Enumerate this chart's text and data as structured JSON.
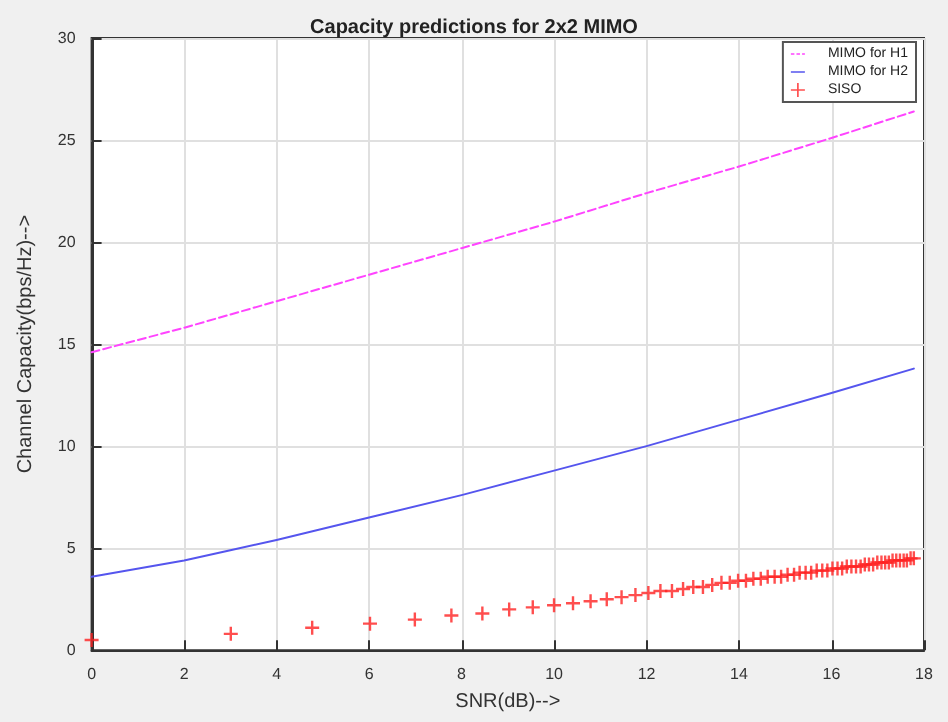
{
  "chart_data": {
    "type": "line",
    "title": "Capacity predictions for 2x2 MIMO",
    "xlabel": "SNR(dB)-->",
    "ylabel": "Channel Capacity(bps/Hz)-->",
    "xlim": [
      0,
      18
    ],
    "xticks": [
      0,
      2,
      4,
      6,
      8,
      10,
      12,
      14,
      16,
      18
    ],
    "ylim": [
      0,
      30
    ],
    "yticks": [
      0,
      5,
      10,
      15,
      20,
      25,
      30
    ],
    "grid": true,
    "legend": "top right",
    "series": [
      {
        "name": "MIMO for H1",
        "color": "#ff44ff",
        "line_style": "dashed",
        "marker": "none",
        "x": [
          0,
          2,
          4,
          6,
          8,
          10,
          12,
          14,
          16,
          17.78
        ],
        "values": [
          14.6,
          15.8,
          17.1,
          18.4,
          19.7,
          21.0,
          22.4,
          23.7,
          25.1,
          26.4
        ]
      },
      {
        "name": "MIMO for H2",
        "color": "#5555ee",
        "line_style": "solid",
        "marker": "none",
        "x": [
          0,
          2,
          3,
          4,
          6,
          8,
          10,
          12,
          14,
          16,
          17.78
        ],
        "values": [
          3.6,
          4.4,
          4.9,
          5.4,
          6.5,
          7.6,
          8.8,
          10.0,
          11.3,
          12.6,
          13.8
        ]
      },
      {
        "name": "SISO",
        "type": "scatter",
        "color": "#ff2222",
        "marker": "cross",
        "x": [
          0,
          3.01,
          4.77,
          6.02,
          6.99,
          7.78,
          8.45,
          9.03,
          9.54,
          10,
          10.41,
          10.79,
          11.14,
          11.46,
          11.76,
          12.04,
          12.3,
          12.55,
          12.79,
          13.01,
          13.22,
          13.42,
          13.62,
          13.8,
          13.98,
          14.15,
          14.31,
          14.47,
          14.62,
          14.77,
          14.91,
          15.05,
          15.19,
          15.31,
          15.44,
          15.56,
          15.68,
          15.8,
          15.91,
          16.02,
          16.13,
          16.23,
          16.33,
          16.43,
          16.53,
          16.63,
          16.72,
          16.81,
          16.9,
          16.99,
          17.08,
          17.16,
          17.24,
          17.32,
          17.4,
          17.48,
          17.56,
          17.63,
          17.71,
          17.78
        ],
        "values": [
          0.5,
          0.8,
          1.1,
          1.3,
          1.5,
          1.7,
          1.8,
          2.0,
          2.1,
          2.2,
          2.3,
          2.4,
          2.5,
          2.6,
          2.7,
          2.8,
          2.9,
          2.9,
          3.0,
          3.1,
          3.1,
          3.2,
          3.3,
          3.3,
          3.4,
          3.4,
          3.5,
          3.5,
          3.6,
          3.6,
          3.6,
          3.7,
          3.7,
          3.8,
          3.8,
          3.8,
          3.9,
          3.9,
          3.9,
          4.0,
          4.0,
          4.0,
          4.1,
          4.1,
          4.1,
          4.1,
          4.2,
          4.2,
          4.2,
          4.3,
          4.3,
          4.3,
          4.3,
          4.4,
          4.4,
          4.4,
          4.4,
          4.4,
          4.5,
          4.5
        ]
      }
    ]
  }
}
